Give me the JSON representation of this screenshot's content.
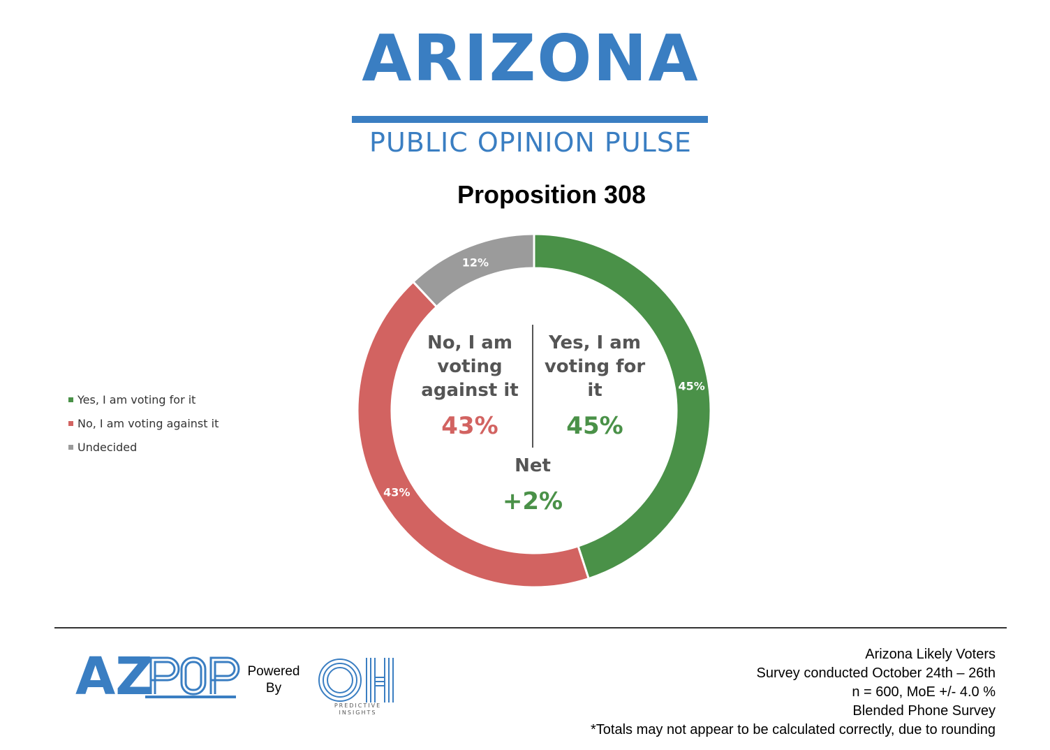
{
  "header": {
    "logo_word": "ARIZONA",
    "logo_subtitle": "PUBLIC OPINION PULSE"
  },
  "chart_data": {
    "type": "pie",
    "title": "Proposition 308",
    "categories": [
      "Yes, I am voting for it",
      "No, I am voting against it",
      "Undecided"
    ],
    "values": [
      45,
      43,
      12
    ],
    "labels": [
      "45%",
      "43%",
      "12%"
    ],
    "colors": [
      "#4a9148",
      "#d26361",
      "#9b9b9b"
    ],
    "legend_position": "left",
    "donut": true
  },
  "center": {
    "no_label": "No, I am voting against it",
    "no_value": "43%",
    "yes_label": "Yes, I am voting for it",
    "yes_value": "45%",
    "net_label": "Net",
    "net_value": "+2%"
  },
  "footer": {
    "azpop_logo": "AZPOP",
    "powered_by": "Powered By",
    "oh_logo": "OH",
    "oh_caption": "PREDICTIVE INSIGHTS",
    "notes": [
      "Arizona Likely Voters",
      "Survey conducted October 24th – 26th",
      "n = 600, MoE +/- 4.0 %",
      "Blended Phone Survey",
      "*Totals may not appear to be calculated correctly, due to rounding"
    ]
  }
}
